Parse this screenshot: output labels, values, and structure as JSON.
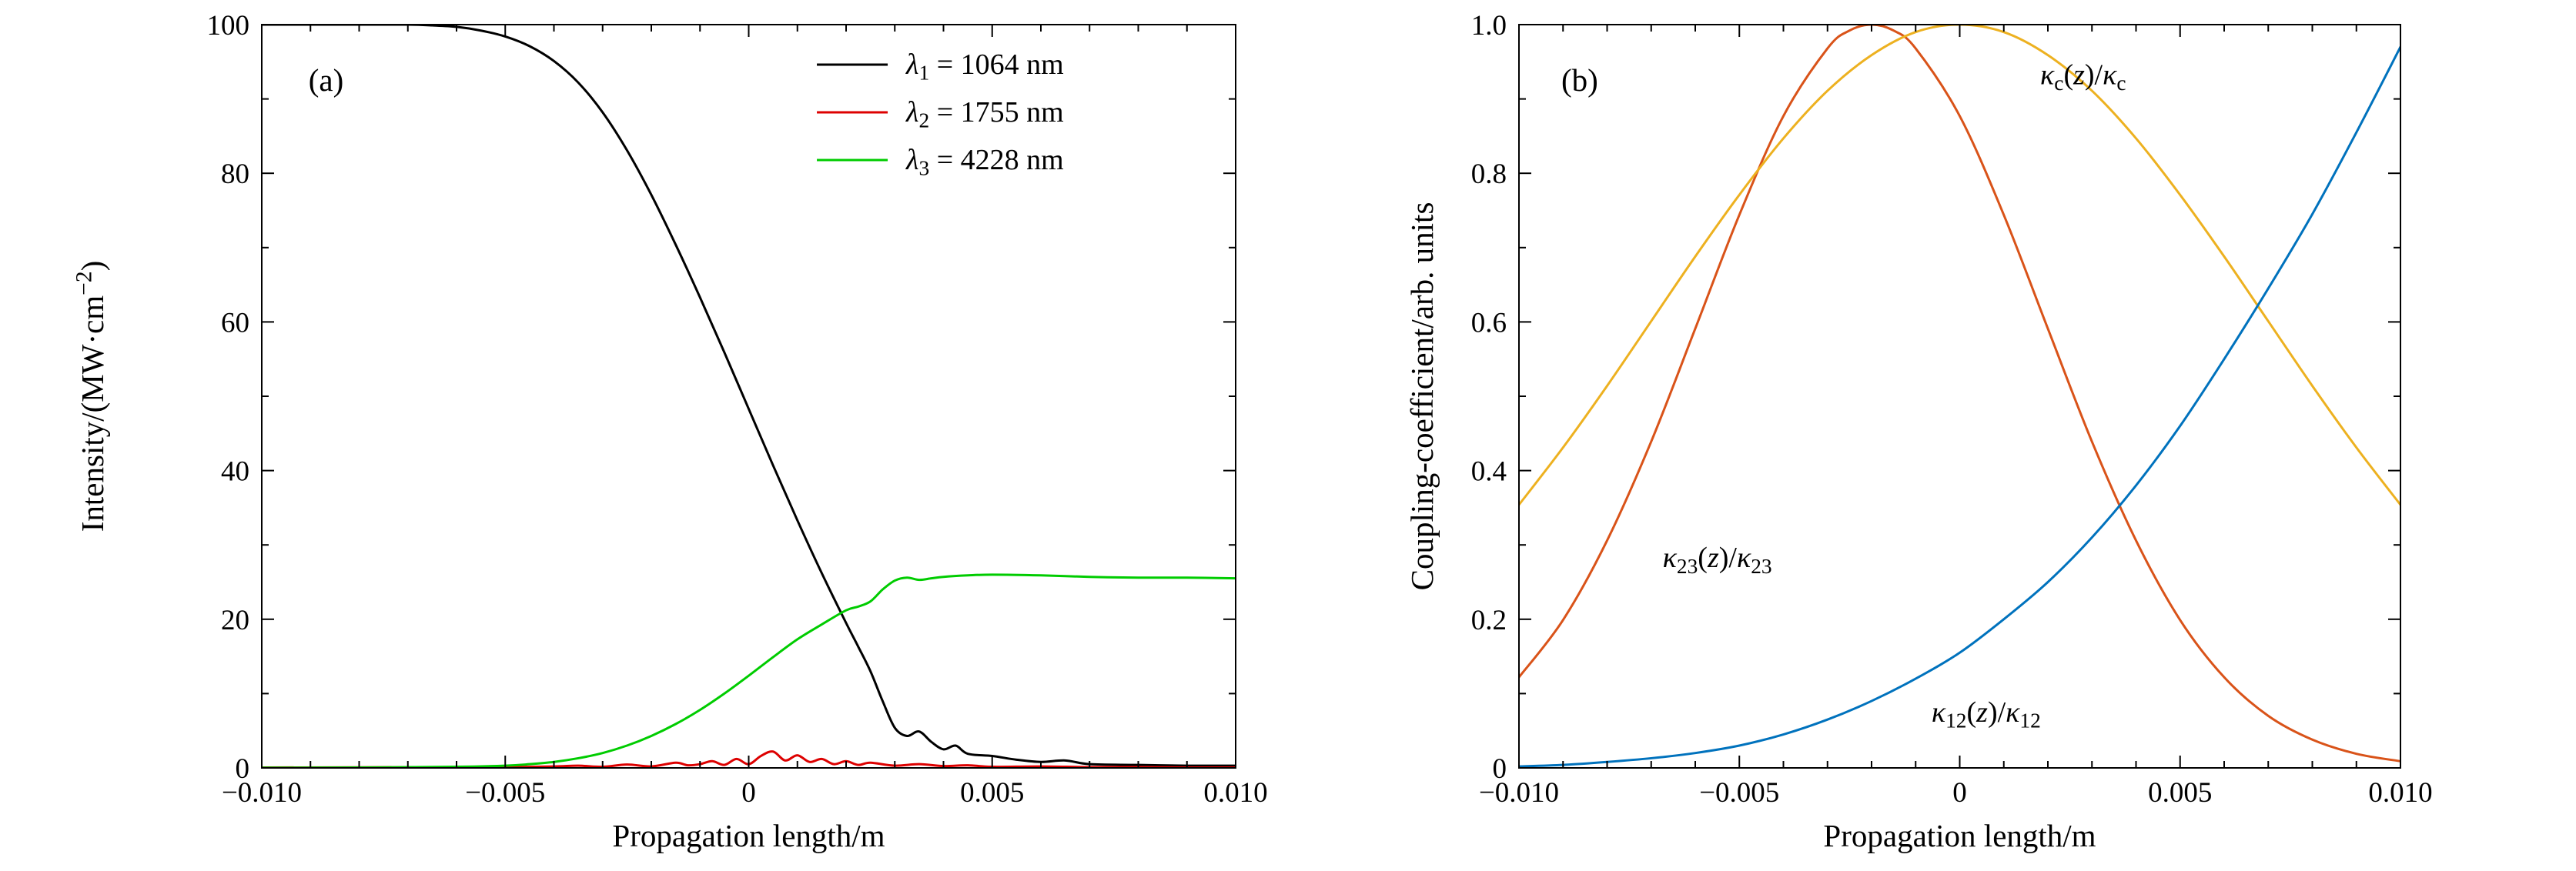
{
  "figure": {
    "background": "#ffffff"
  },
  "chart_data": [
    {
      "type": "line",
      "panel_label": "(a)",
      "xlabel": "Propagation length/m",
      "ylabel": "Intensity/(MW·cm^{−2})",
      "xlim": [
        -0.01,
        0.01
      ],
      "ylim": [
        0,
        100
      ],
      "xticks": [
        -0.01,
        -0.005,
        0,
        0.005,
        0.01
      ],
      "xtick_labels": [
        "−0.010",
        "−0.005",
        "0",
        "0.005",
        "0.010"
      ],
      "yticks": [
        0,
        20,
        40,
        60,
        80,
        100
      ],
      "ytick_labels": [
        "0",
        "20",
        "40",
        "60",
        "80",
        "100"
      ],
      "grid": false,
      "legend_position": "top-right",
      "series": [
        {
          "key": "lambda-1",
          "name": "*λ*_{1} = 1064 nm",
          "color": "#000000",
          "x": [
            -0.01,
            -0.009,
            -0.008,
            -0.007,
            -0.0065,
            -0.006,
            -0.0055,
            -0.005,
            -0.0045,
            -0.004,
            -0.0035,
            -0.003,
            -0.0025,
            -0.002,
            -0.0015,
            -0.001,
            -0.0005,
            0,
            0.0005,
            0.001,
            0.0015,
            0.002,
            0.00225,
            0.0025,
            0.00275,
            0.003,
            0.00325,
            0.0035,
            0.00375,
            0.004,
            0.00425,
            0.0045,
            0.005,
            0.0055,
            0.006,
            0.0065,
            0.007,
            0.008,
            0.009,
            0.01
          ],
          "y": [
            100,
            100,
            100,
            100,
            99.9,
            99.7,
            99.2,
            98.4,
            97.1,
            95.1,
            92.2,
            88.2,
            83.1,
            77.1,
            70.4,
            63.3,
            55.9,
            48.3,
            40.7,
            33.3,
            26.2,
            19.5,
            16.3,
            13.0,
            9.0,
            5.4,
            4.3,
            4.9,
            3.5,
            2.5,
            3.0,
            1.9,
            1.6,
            1.1,
            0.8,
            1.0,
            0.5,
            0.4,
            0.3,
            0.3
          ]
        },
        {
          "key": "lambda-2",
          "name": "*λ*_{2} = 1755 nm",
          "color": "#dd0000",
          "x": [
            -0.01,
            -0.006,
            -0.005,
            -0.004,
            -0.0035,
            -0.003,
            -0.0025,
            -0.002,
            -0.0015,
            -0.00125,
            -0.001,
            -0.00075,
            -0.0005,
            -0.00025,
            0,
            0.00025,
            0.0005,
            0.00075,
            0.001,
            0.00125,
            0.0015,
            0.00175,
            0.002,
            0.00225,
            0.0025,
            0.003,
            0.0035,
            0.004,
            0.0045,
            0.005,
            0.006,
            0.007,
            0.008,
            0.009,
            0.01
          ],
          "y": [
            0.05,
            0.1,
            0.1,
            0.2,
            0.3,
            0.15,
            0.45,
            0.2,
            0.7,
            0.35,
            0.5,
            0.9,
            0.4,
            1.2,
            0.5,
            1.6,
            2.2,
            1.0,
            1.7,
            0.8,
            1.2,
            0.5,
            0.9,
            0.4,
            0.7,
            0.3,
            0.5,
            0.25,
            0.35,
            0.15,
            0.2,
            0.1,
            0.1,
            0.05,
            0.05
          ]
        },
        {
          "key": "lambda-3",
          "name": "*λ*_{3} = 4228 nm",
          "color": "#00cc00",
          "x": [
            -0.01,
            -0.008,
            -0.006,
            -0.005,
            -0.0045,
            -0.004,
            -0.0035,
            -0.003,
            -0.0025,
            -0.002,
            -0.0015,
            -0.001,
            -0.0005,
            0,
            0.0005,
            0.001,
            0.0015,
            0.002,
            0.00225,
            0.0025,
            0.00275,
            0.003,
            0.00325,
            0.0035,
            0.00375,
            0.004,
            0.0045,
            0.005,
            0.006,
            0.007,
            0.008,
            0.009,
            0.01
          ],
          "y": [
            0.02,
            0.05,
            0.15,
            0.3,
            0.5,
            0.8,
            1.3,
            2.0,
            3.0,
            4.3,
            5.9,
            7.8,
            10.0,
            12.4,
            14.9,
            17.3,
            19.3,
            21.2,
            21.7,
            22.4,
            24.0,
            25.2,
            25.6,
            25.3,
            25.5,
            25.7,
            25.9,
            26.0,
            25.9,
            25.7,
            25.6,
            25.6,
            25.5
          ]
        }
      ],
      "annotations": []
    },
    {
      "type": "line",
      "panel_label": "(b)",
      "xlabel": "Propagation length/m",
      "ylabel": "Coupling-coefficient/arb. units",
      "xlim": [
        -0.01,
        0.01
      ],
      "ylim": [
        0,
        1
      ],
      "xticks": [
        -0.01,
        -0.005,
        0,
        0.005,
        0.01
      ],
      "xtick_labels": [
        "−0.010",
        "−0.005",
        "0",
        "0.005",
        "0.010"
      ],
      "yticks": [
        0,
        0.2,
        0.4,
        0.6,
        0.8,
        1.0
      ],
      "ytick_labels": [
        "0",
        "0.2",
        "0.4",
        "0.6",
        "0.8",
        "1.0"
      ],
      "grid": false,
      "legend_position": "",
      "series": [
        {
          "key": "kappa-23",
          "name": "*κ*_{23}(*z*)/*κ*_{23}",
          "color": "#d95319",
          "x": [
            -0.01,
            -0.009,
            -0.008,
            -0.007,
            -0.006,
            -0.005,
            -0.004,
            -0.003,
            -0.0025,
            -0.002,
            -0.0015,
            -0.001,
            0,
            0.001,
            0.002,
            0.003,
            0.004,
            0.005,
            0.006,
            0.007,
            0.008,
            0.009,
            0.01
          ],
          "y": [
            0.122,
            0.199,
            0.306,
            0.439,
            0.591,
            0.744,
            0.877,
            0.968,
            0.992,
            1.0,
            0.992,
            0.968,
            0.877,
            0.744,
            0.591,
            0.439,
            0.306,
            0.199,
            0.122,
            0.07,
            0.038,
            0.019,
            0.009
          ]
        },
        {
          "key": "kappa-c",
          "name": "*κ*_{c}(*z*)/*κ*_{c}",
          "color": "#edb120",
          "x": [
            -0.01,
            -0.009,
            -0.008,
            -0.007,
            -0.006,
            -0.005,
            -0.004,
            -0.003,
            -0.002,
            -0.001,
            0,
            0.001,
            0.002,
            0.003,
            0.004,
            0.005,
            0.006,
            0.007,
            0.008,
            0.009,
            0.01
          ],
          "y": [
            0.354,
            0.431,
            0.514,
            0.601,
            0.688,
            0.771,
            0.847,
            0.911,
            0.959,
            0.99,
            1.0,
            0.99,
            0.959,
            0.911,
            0.847,
            0.771,
            0.688,
            0.601,
            0.514,
            0.431,
            0.354
          ]
        },
        {
          "key": "kappa-12",
          "name": "*κ*_{12}(*z*)/*κ*_{12}",
          "color": "#0072bd",
          "x": [
            -0.01,
            -0.009,
            -0.008,
            -0.007,
            -0.006,
            -0.005,
            -0.004,
            -0.003,
            -0.002,
            -0.001,
            0,
            0.001,
            0.002,
            0.003,
            0.004,
            0.005,
            0.006,
            0.007,
            0.008,
            0.009,
            0.01
          ],
          "y": [
            0.002,
            0.004,
            0.008,
            0.013,
            0.02,
            0.03,
            0.045,
            0.065,
            0.09,
            0.12,
            0.155,
            0.2,
            0.25,
            0.31,
            0.38,
            0.46,
            0.55,
            0.645,
            0.745,
            0.855,
            0.97
          ]
        }
      ],
      "annotations": [
        {
          "text": "*κ*_{23}(*z*)/*κ*_{23}",
          "x": -0.0055,
          "y": 0.27
        },
        {
          "text": "*κ*_{c}(*z*)/*κ*_{c}",
          "x": 0.0028,
          "y": 0.92
        },
        {
          "text": "*κ*_{12}(*z*)/*κ*_{12}",
          "x": 0.0006,
          "y": 0.062
        }
      ]
    }
  ]
}
